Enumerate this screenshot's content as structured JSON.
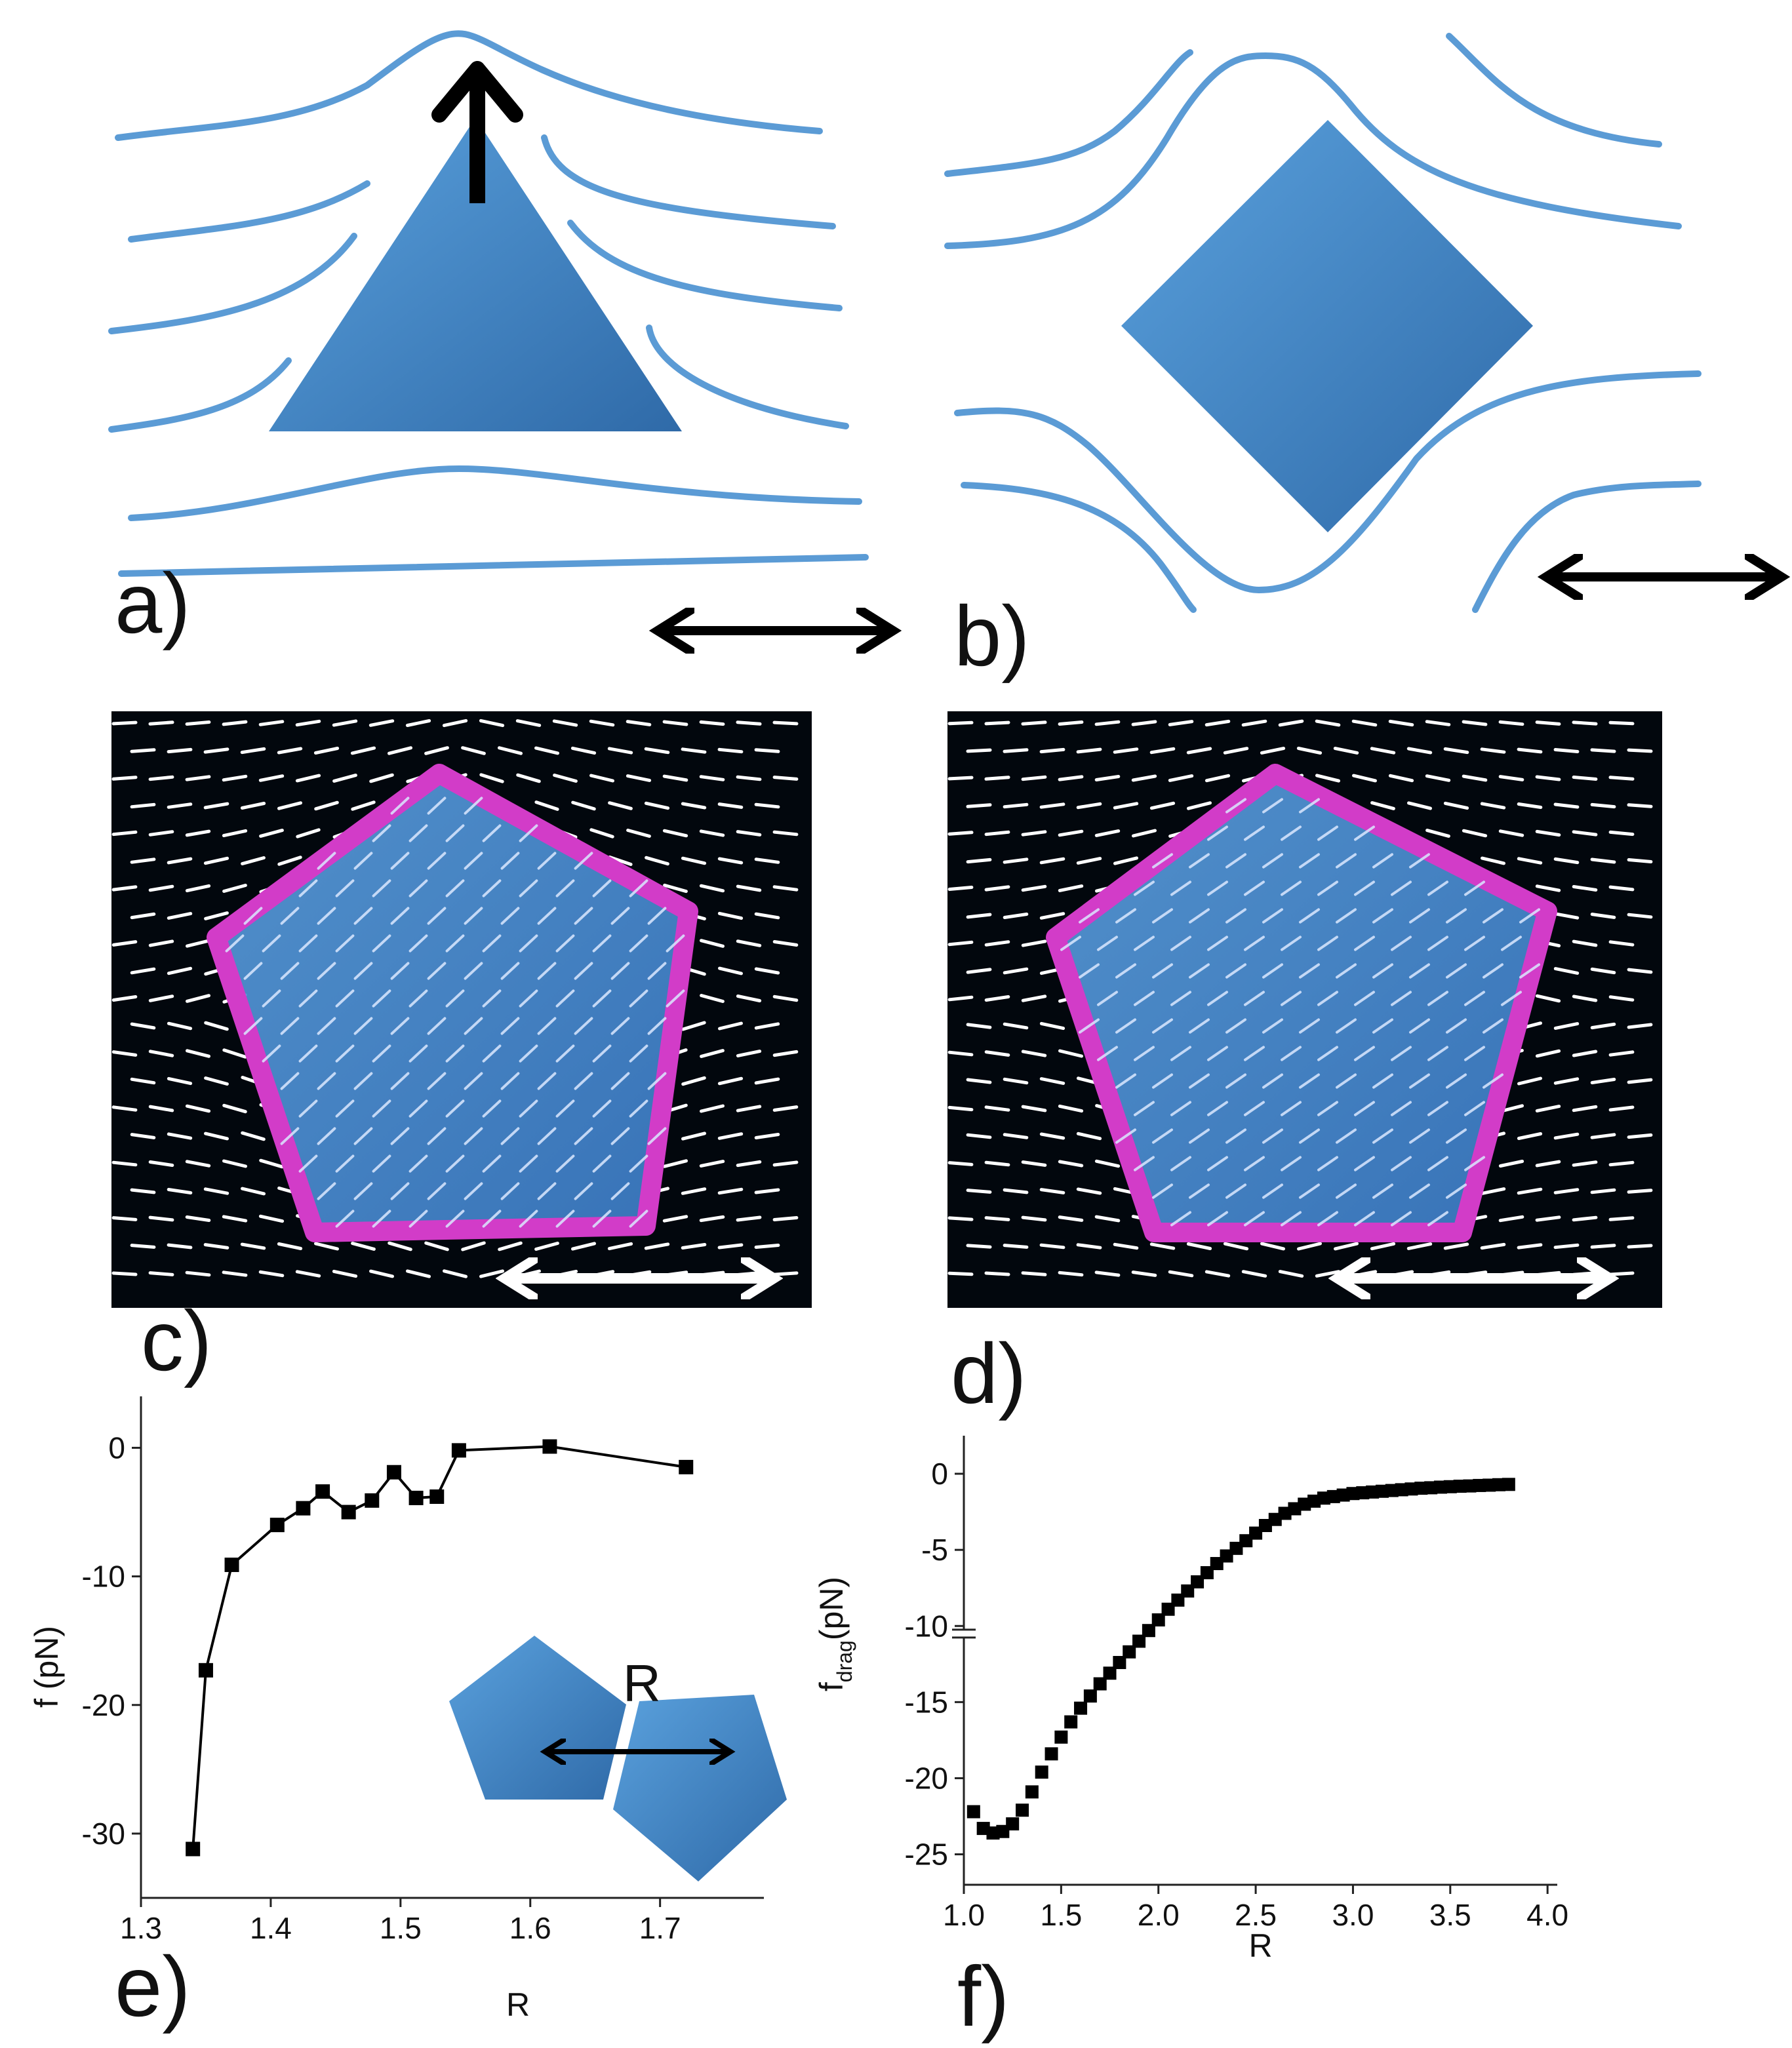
{
  "panels": {
    "a": {
      "label": "a)"
    },
    "b": {
      "label": "b)"
    },
    "c": {
      "label": "c)"
    },
    "d": {
      "label": "d)"
    },
    "e": {
      "label": "e)"
    },
    "f": {
      "label": "f)"
    }
  },
  "colors": {
    "particle_blue": "#4a8fcf",
    "line_blue": "#5b9bd5",
    "outline_magenta": "#d23cc8",
    "sim_background": "#02070d",
    "director_white": "#ffffff",
    "marker": "#000000"
  },
  "chart_data": [
    {
      "type": "line",
      "panel": "e",
      "xlabel": "R",
      "ylabel": "f (pN)",
      "xlim": [
        1.3,
        1.78
      ],
      "ylim": [
        -35,
        4
      ],
      "xticks": [
        1.3,
        1.4,
        1.5,
        1.6,
        1.7
      ],
      "yticks": [
        0,
        -10,
        -20,
        -30
      ],
      "marker": "square",
      "inset_label": "R",
      "series": [
        {
          "x": [
            1.34,
            1.35,
            1.37,
            1.405,
            1.425,
            1.44,
            1.46,
            1.478,
            1.495,
            1.512,
            1.528,
            1.545,
            1.615,
            1.72
          ],
          "y": [
            -31.2,
            -17.3,
            -9.1,
            -6.0,
            -4.7,
            -3.4,
            -5.0,
            -4.1,
            -1.9,
            -3.9,
            -3.8,
            -0.2,
            0.1,
            -1.5
          ]
        }
      ]
    },
    {
      "type": "scatter",
      "panel": "f",
      "xlabel": "R",
      "ylabel": "f",
      "ylabel_sub": "drag",
      "ylabel_unit": "(pN)",
      "xlim": [
        1.0,
        4.05
      ],
      "ylim": [
        -27,
        2.5
      ],
      "xticks": [
        1.0,
        1.5,
        2.0,
        2.5,
        3.0,
        3.5,
        4.0
      ],
      "xtick_labels": [
        "1.0",
        "1.5",
        "2.0",
        "2.5",
        "3.0",
        "3.5",
        "4.0"
      ],
      "yticks": [
        0,
        -5,
        -10,
        -15,
        -20,
        -25
      ],
      "yaxis_break": -10.5,
      "marker": "square",
      "series": [
        {
          "x": [
            1.05,
            1.1,
            1.15,
            1.2,
            1.25,
            1.3,
            1.35,
            1.4,
            1.45,
            1.5,
            1.55,
            1.6,
            1.65,
            1.7,
            1.75,
            1.8,
            1.85,
            1.9,
            1.95,
            2.0,
            2.05,
            2.1,
            2.15,
            2.2,
            2.25,
            2.3,
            2.35,
            2.4,
            2.45,
            2.5,
            2.55,
            2.6,
            2.65,
            2.7,
            2.75,
            2.8,
            2.85,
            2.9,
            2.95,
            3.0,
            3.05,
            3.1,
            3.15,
            3.2,
            3.25,
            3.3,
            3.35,
            3.4,
            3.45,
            3.5,
            3.55,
            3.6,
            3.65,
            3.7,
            3.75,
            3.8
          ],
          "y": [
            -22.2,
            -23.3,
            -23.6,
            -23.5,
            -23.0,
            -22.1,
            -20.9,
            -19.6,
            -18.4,
            -17.3,
            -16.3,
            -15.4,
            -14.6,
            -13.8,
            -13.1,
            -12.4,
            -11.7,
            -11.0,
            -10.3,
            -9.6,
            -8.9,
            -8.3,
            -7.7,
            -7.1,
            -6.5,
            -5.9,
            -5.4,
            -4.9,
            -4.4,
            -3.9,
            -3.4,
            -3.0,
            -2.6,
            -2.3,
            -2.0,
            -1.8,
            -1.6,
            -1.5,
            -1.4,
            -1.3,
            -1.25,
            -1.2,
            -1.15,
            -1.1,
            -1.05,
            -1.0,
            -0.95,
            -0.92,
            -0.88,
            -0.85,
            -0.82,
            -0.8,
            -0.77,
            -0.75,
            -0.72,
            -0.7
          ]
        }
      ]
    }
  ]
}
